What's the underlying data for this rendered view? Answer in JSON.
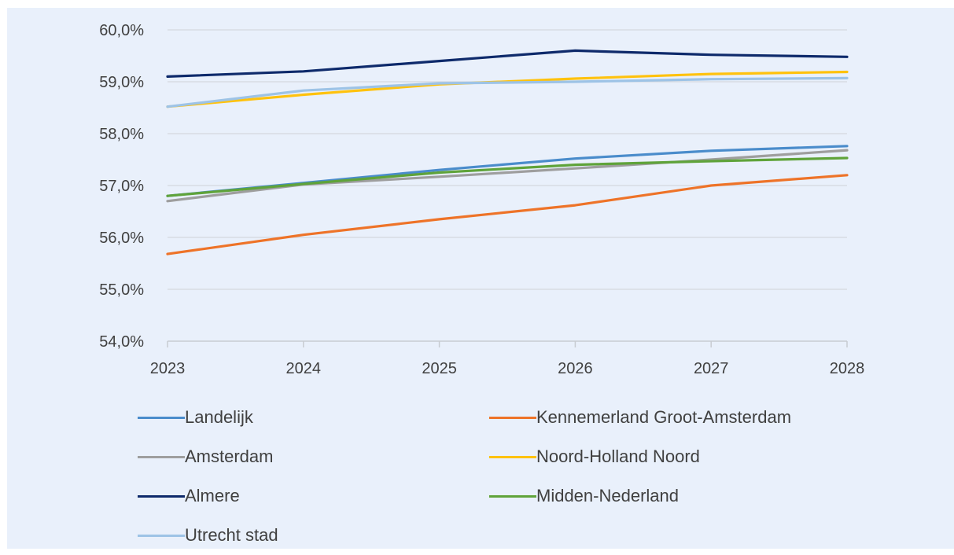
{
  "chart_data": {
    "type": "line",
    "title": "",
    "xlabel": "",
    "ylabel": "",
    "x": [
      "2023",
      "2024",
      "2025",
      "2026",
      "2027",
      "2028"
    ],
    "ylim": [
      54.0,
      60.0
    ],
    "y_ticks": [
      "54,0%",
      "55,0%",
      "56,0%",
      "57,0%",
      "58,0%",
      "59,0%",
      "60,0%"
    ],
    "grid": "horizontal",
    "legend_position": "bottom",
    "series": [
      {
        "name": "Landelijk",
        "color": "#4a8ccb",
        "values": [
          56.8,
          57.05,
          57.3,
          57.52,
          57.67,
          57.76
        ]
      },
      {
        "name": "Kennemerland Groot-Amsterdam",
        "color": "#ee7328",
        "values": [
          55.68,
          56.05,
          56.35,
          56.62,
          57.0,
          57.2
        ]
      },
      {
        "name": "Amsterdam",
        "color": "#9e9e9e",
        "values": [
          56.7,
          57.02,
          57.17,
          57.33,
          57.5,
          57.68
        ]
      },
      {
        "name": "Noord-Holland Noord",
        "color": "#ffc20e",
        "values": [
          58.52,
          58.75,
          58.95,
          59.06,
          59.15,
          59.19
        ]
      },
      {
        "name": "Almere",
        "color": "#0e2a6b",
        "values": [
          59.1,
          59.2,
          59.4,
          59.6,
          59.52,
          59.48
        ]
      },
      {
        "name": "Midden-Nederland",
        "color": "#5fa33a",
        "values": [
          56.8,
          57.03,
          57.25,
          57.4,
          57.47,
          57.53
        ]
      },
      {
        "name": "Utrecht stad",
        "color": "#9dc3e6",
        "values": [
          58.52,
          58.83,
          58.97,
          59.0,
          59.05,
          59.07
        ]
      }
    ]
  }
}
